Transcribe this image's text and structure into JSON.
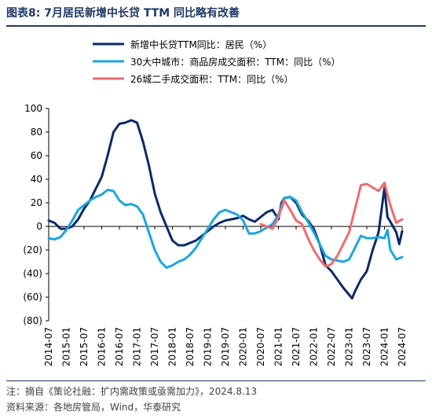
{
  "header": {
    "title": "图表8:  7月居民新增中长贷 TTM 同比略有改善"
  },
  "footer": {
    "note": "注：摘自《策论社融：扩内需政策或亟需加力》，2024.8.13",
    "source": "资料来源：各地房管局，Wind，华泰研究"
  },
  "colors": {
    "loans": "#0b2a6b",
    "city30": "#1aa6e0",
    "city26": "#ee6b6e",
    "title": "#1f3864"
  },
  "chart_data": {
    "type": "line",
    "x_ticks": [
      "2014-07",
      "2015-01",
      "2015-07",
      "2016-01",
      "2016-07",
      "2017-01",
      "2017-07",
      "2018-01",
      "2018-07",
      "2019-01",
      "2019-07",
      "2020-01",
      "2020-07",
      "2021-01",
      "2021-07",
      "2022-01",
      "2022-07",
      "2023-01",
      "2023-07",
      "2024-01",
      "2024-07"
    ],
    "y_ticks": [
      "100",
      "80",
      "60",
      "40",
      "20",
      "0",
      "(20)",
      "(40)",
      "(60)",
      "(80)"
    ],
    "y_tick_values": [
      100,
      80,
      60,
      40,
      20,
      0,
      -20,
      -40,
      -60,
      -80
    ],
    "ylim": [
      -80,
      100
    ],
    "xlim": [
      "2014-07",
      "2024-07"
    ],
    "grid": false,
    "legend_position": "top-center",
    "series": [
      {
        "name": "新增中长贷TTM同比：居民（%）",
        "color": "#0b2a6b",
        "points": [
          [
            "2014-07",
            5
          ],
          [
            "2014-09",
            3
          ],
          [
            "2014-11",
            -2
          ],
          [
            "2015-01",
            -2
          ],
          [
            "2015-03",
            0
          ],
          [
            "2015-05",
            6
          ],
          [
            "2015-07",
            15
          ],
          [
            "2015-09",
            22
          ],
          [
            "2015-11",
            32
          ],
          [
            "2016-01",
            42
          ],
          [
            "2016-03",
            60
          ],
          [
            "2016-05",
            80
          ],
          [
            "2016-07",
            87
          ],
          [
            "2016-09",
            88
          ],
          [
            "2016-11",
            90
          ],
          [
            "2017-01",
            88
          ],
          [
            "2017-03",
            72
          ],
          [
            "2017-05",
            52
          ],
          [
            "2017-07",
            28
          ],
          [
            "2017-09",
            12
          ],
          [
            "2017-11",
            0
          ],
          [
            "2018-01",
            -12
          ],
          [
            "2018-03",
            -16
          ],
          [
            "2018-05",
            -16
          ],
          [
            "2018-07",
            -14
          ],
          [
            "2018-09",
            -12
          ],
          [
            "2018-11",
            -8
          ],
          [
            "2019-01",
            -4
          ],
          [
            "2019-03",
            0
          ],
          [
            "2019-05",
            3
          ],
          [
            "2019-07",
            5
          ],
          [
            "2019-09",
            6
          ],
          [
            "2019-11",
            7
          ],
          [
            "2020-01",
            9
          ],
          [
            "2020-03",
            6
          ],
          [
            "2020-05",
            4
          ],
          [
            "2020-07",
            8
          ],
          [
            "2020-09",
            12
          ],
          [
            "2020-11",
            14
          ],
          [
            "2021-01",
            6
          ],
          [
            "2021-02",
            20
          ],
          [
            "2021-03",
            24
          ],
          [
            "2021-05",
            25
          ],
          [
            "2021-07",
            20
          ],
          [
            "2021-09",
            10
          ],
          [
            "2021-11",
            5
          ],
          [
            "2022-01",
            -2
          ],
          [
            "2022-03",
            -15
          ],
          [
            "2022-05",
            -33
          ],
          [
            "2022-07",
            -38
          ],
          [
            "2022-09",
            -45
          ],
          [
            "2022-11",
            -52
          ],
          [
            "2023-01",
            -58
          ],
          [
            "2023-02",
            -61
          ],
          [
            "2023-03",
            -55
          ],
          [
            "2023-05",
            -45
          ],
          [
            "2023-07",
            -38
          ],
          [
            "2023-09",
            -20
          ],
          [
            "2023-11",
            -5
          ],
          [
            "2024-01",
            33
          ],
          [
            "2024-02",
            8
          ],
          [
            "2024-03",
            4
          ],
          [
            "2024-05",
            -5
          ],
          [
            "2024-06",
            -15
          ],
          [
            "2024-07",
            -4
          ]
        ]
      },
      {
        "name": "30大中城市：商品房成交面积：TTM：同比（%）",
        "color": "#1aa6e0",
        "points": [
          [
            "2014-07",
            -10
          ],
          [
            "2014-09",
            -11
          ],
          [
            "2014-11",
            -9
          ],
          [
            "2015-01",
            -3
          ],
          [
            "2015-03",
            5
          ],
          [
            "2015-05",
            14
          ],
          [
            "2015-07",
            18
          ],
          [
            "2015-09",
            22
          ],
          [
            "2015-11",
            25
          ],
          [
            "2016-01",
            27
          ],
          [
            "2016-03",
            31
          ],
          [
            "2016-05",
            30
          ],
          [
            "2016-07",
            22
          ],
          [
            "2016-09",
            18
          ],
          [
            "2016-11",
            19
          ],
          [
            "2017-01",
            17
          ],
          [
            "2017-03",
            10
          ],
          [
            "2017-05",
            -5
          ],
          [
            "2017-07",
            -20
          ],
          [
            "2017-09",
            -30
          ],
          [
            "2017-11",
            -35
          ],
          [
            "2018-01",
            -33
          ],
          [
            "2018-03",
            -30
          ],
          [
            "2018-05",
            -28
          ],
          [
            "2018-07",
            -24
          ],
          [
            "2018-09",
            -18
          ],
          [
            "2018-11",
            -10
          ],
          [
            "2019-01",
            -2
          ],
          [
            "2019-03",
            6
          ],
          [
            "2019-05",
            12
          ],
          [
            "2019-07",
            14
          ],
          [
            "2019-09",
            12
          ],
          [
            "2019-11",
            10
          ],
          [
            "2020-01",
            5
          ],
          [
            "2020-03",
            -6
          ],
          [
            "2020-05",
            -6
          ],
          [
            "2020-07",
            -4
          ],
          [
            "2020-09",
            -1
          ],
          [
            "2020-11",
            2
          ],
          [
            "2021-01",
            10
          ],
          [
            "2021-03",
            24
          ],
          [
            "2021-05",
            25
          ],
          [
            "2021-07",
            22
          ],
          [
            "2021-09",
            12
          ],
          [
            "2021-11",
            4
          ],
          [
            "2022-01",
            -5
          ],
          [
            "2022-03",
            -15
          ],
          [
            "2022-05",
            -25
          ],
          [
            "2022-07",
            -28
          ],
          [
            "2022-09",
            -29
          ],
          [
            "2022-11",
            -30
          ],
          [
            "2023-01",
            -28
          ],
          [
            "2023-03",
            -18
          ],
          [
            "2023-05",
            -8
          ],
          [
            "2023-07",
            -10
          ],
          [
            "2023-09",
            -10
          ],
          [
            "2023-11",
            -9
          ],
          [
            "2024-01",
            -10
          ],
          [
            "2024-02",
            -3
          ],
          [
            "2024-03",
            -20
          ],
          [
            "2024-05",
            -28
          ],
          [
            "2024-07",
            -26
          ]
        ]
      },
      {
        "name": "26城二手成交面积：TTM：同比（%）",
        "color": "#ee6b6e",
        "points": [
          [
            "2020-07",
            2
          ],
          [
            "2020-09",
            0
          ],
          [
            "2020-11",
            -2
          ],
          [
            "2021-01",
            8
          ],
          [
            "2021-03",
            22
          ],
          [
            "2021-05",
            14
          ],
          [
            "2021-07",
            5
          ],
          [
            "2021-09",
            2
          ],
          [
            "2021-11",
            -10
          ],
          [
            "2022-01",
            -20
          ],
          [
            "2022-03",
            -28
          ],
          [
            "2022-05",
            -34
          ],
          [
            "2022-07",
            -32
          ],
          [
            "2022-09",
            -25
          ],
          [
            "2022-11",
            -15
          ],
          [
            "2023-01",
            -5
          ],
          [
            "2023-03",
            15
          ],
          [
            "2023-05",
            35
          ],
          [
            "2023-07",
            36
          ],
          [
            "2023-09",
            33
          ],
          [
            "2023-11",
            30
          ],
          [
            "2024-01",
            37
          ],
          [
            "2024-02",
            27
          ],
          [
            "2024-03",
            18
          ],
          [
            "2024-05",
            3
          ],
          [
            "2024-07",
            6
          ]
        ]
      }
    ]
  }
}
